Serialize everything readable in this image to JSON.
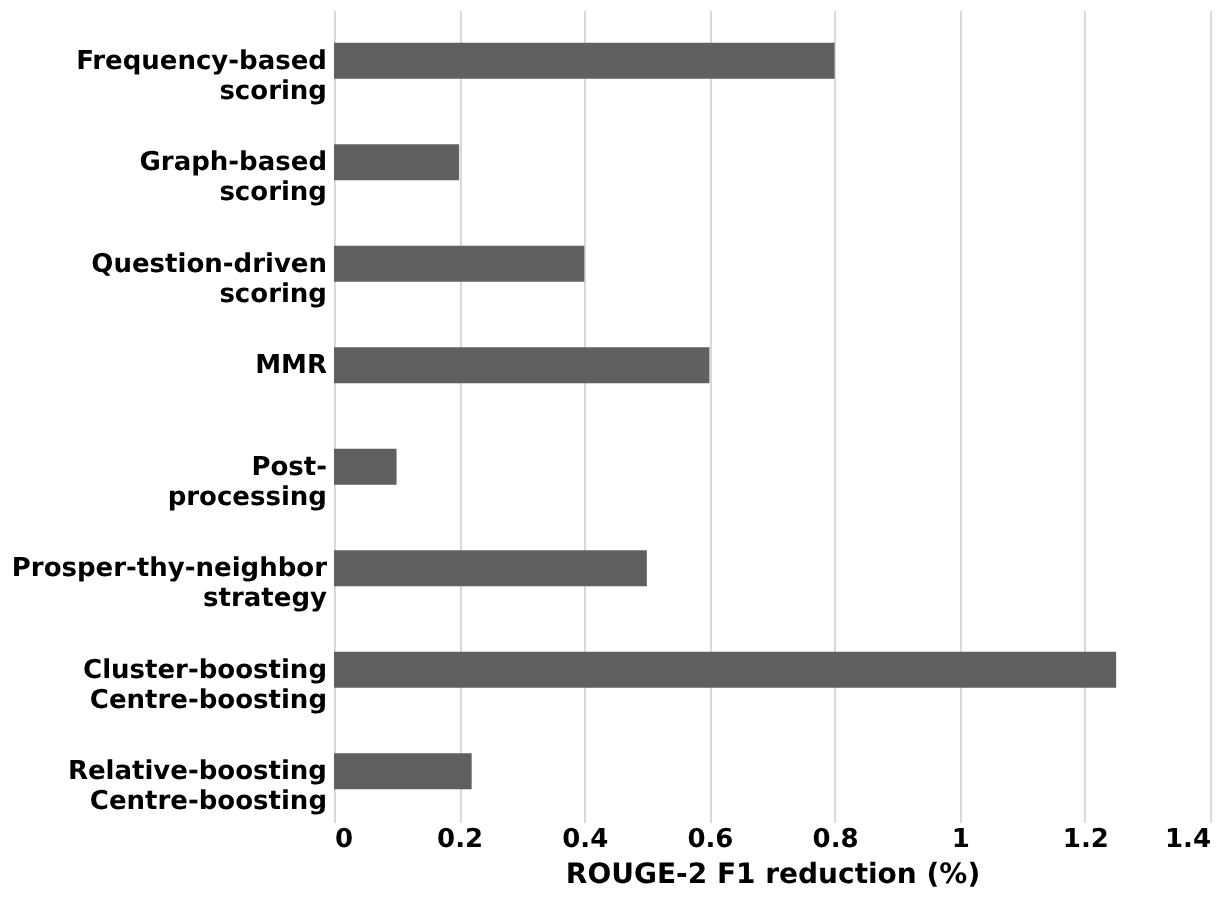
{
  "chart_data": {
    "type": "bar",
    "orientation": "horizontal",
    "xlabel": "ROUGE-2 F1 reduction (%)",
    "categories": [
      "Frequency-based\nscoring",
      "Graph-based\nscoring",
      "Question-driven\nscoring",
      "MMR",
      "Post-\nprocessing",
      "Prosper-thy-neighbor\nstrategy",
      "Cluster-boosting\nCentre-boosting",
      "Relative-boosting\nCentre-boosting"
    ],
    "values": [
      0.8,
      0.2,
      0.4,
      0.6,
      0.1,
      0.5,
      1.25,
      0.22
    ],
    "color": "#606060",
    "xlim": [
      0,
      1.4
    ],
    "xticks": [
      0,
      0.2,
      0.4,
      0.6,
      0.8,
      1,
      1.2,
      1.4
    ],
    "grid": "x"
  }
}
